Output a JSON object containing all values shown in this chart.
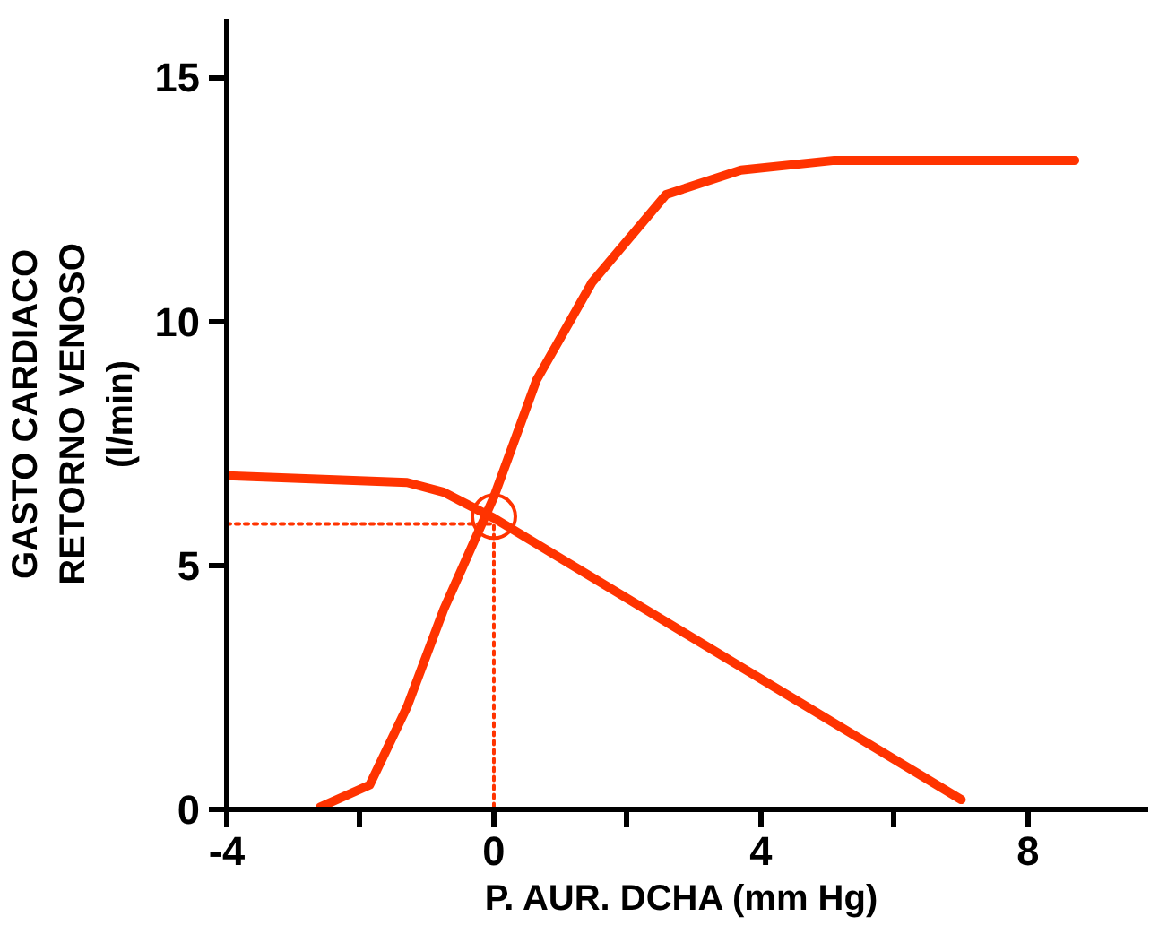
{
  "chart_data": {
    "type": "line",
    "xlabel": "P.  AUR. DCHA (mm Hg)",
    "ylabel": "GASTO CARDIACO\nRETORNO VENOSO\n(l/min)",
    "xlim": [
      -4,
      9.8
    ],
    "ylim": [
      0,
      16.2
    ],
    "xticks": [
      -4,
      {
        "value": -2,
        "label": null
      },
      0,
      {
        "value": 2,
        "label": null
      },
      4,
      {
        "value": 6,
        "label": null
      },
      8
    ],
    "yticks": [
      0,
      5,
      10,
      15
    ],
    "grid": false,
    "marker": "none",
    "line_style": "solid",
    "series": [
      {
        "color": "#ff3300",
        "x": [
          -2.6,
          -1.86,
          -1.3,
          -0.75,
          0,
          0.64,
          1.47,
          2.58,
          3.7,
          5.1,
          8.7
        ],
        "values": [
          0.05,
          0.5,
          2.1,
          4.1,
          6.4,
          8.8,
          10.8,
          12.6,
          13.1,
          13.3,
          13.3
        ]
      },
      {
        "color": "#ff3300",
        "x": [
          -4,
          -1.3,
          -0.75,
          0,
          7.0
        ],
        "values": [
          6.84,
          6.7,
          6.5,
          5.97,
          0.2
        ]
      },
      {
        "color": "#ff3300",
        "line_style": "dotted",
        "x": [
          -4,
          0,
          0
        ],
        "values": [
          5.85,
          5.85,
          0
        ]
      },
      {
        "type": "scatter",
        "marker": "circle",
        "color": "#ff3300",
        "x": [
          0
        ],
        "values": [
          6.0
        ]
      }
    ]
  }
}
